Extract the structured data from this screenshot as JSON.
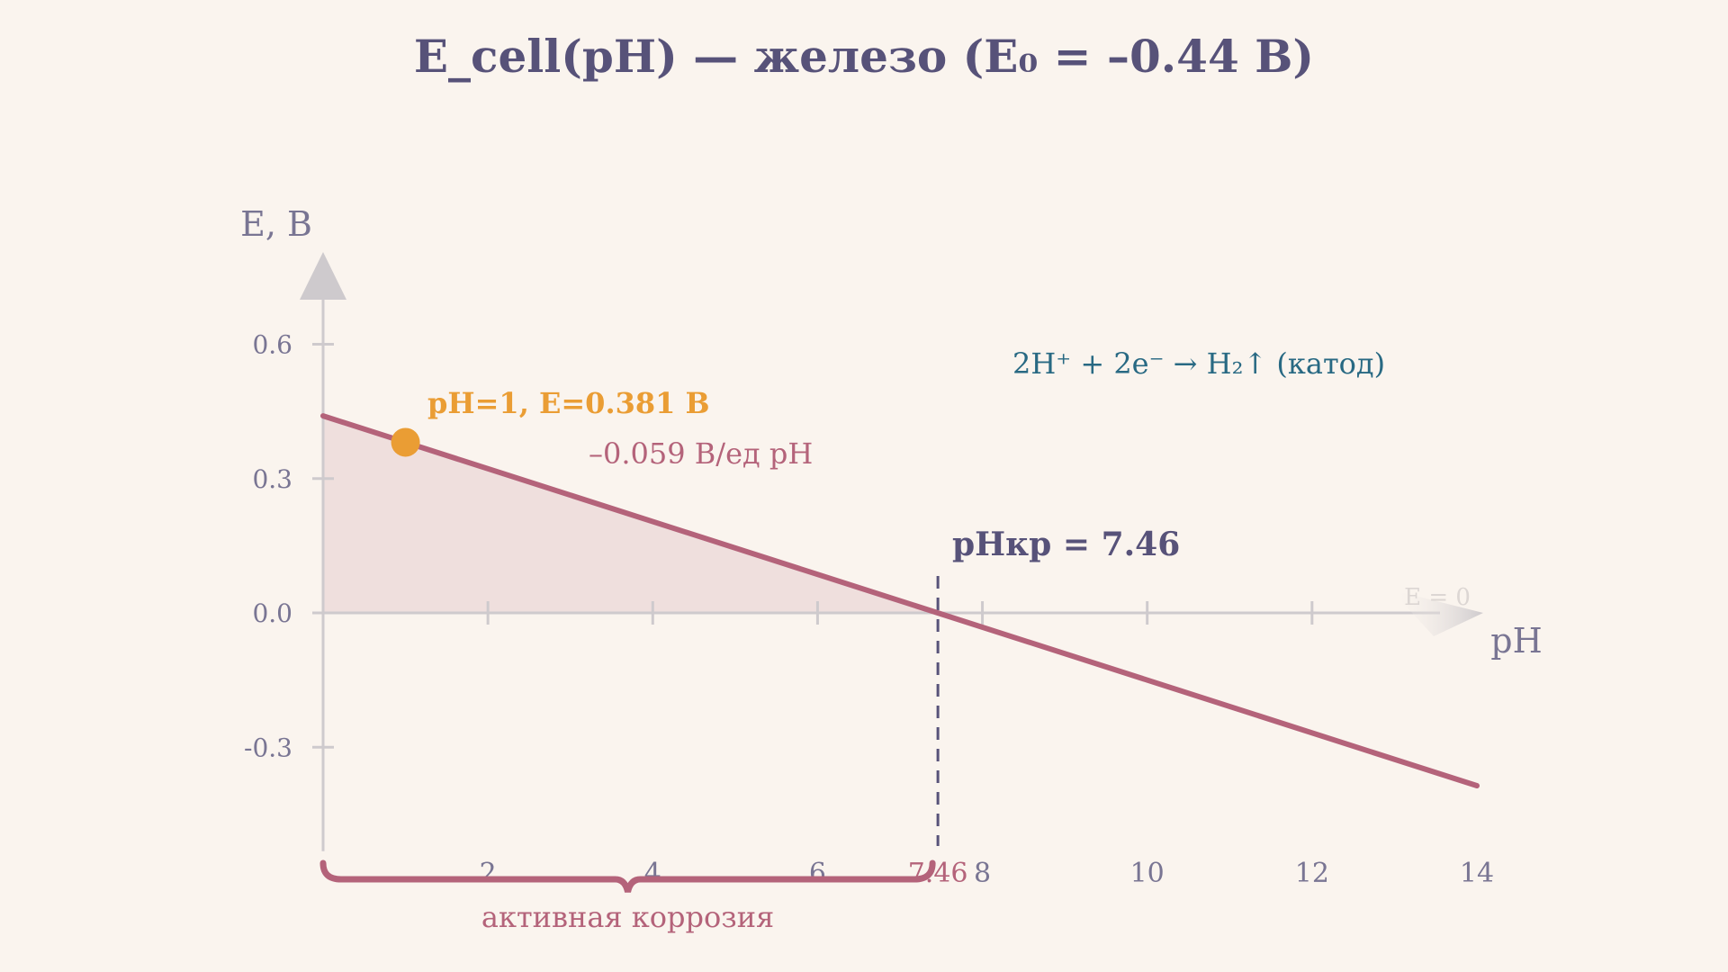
{
  "chart_data": {
    "type": "line",
    "title": "E_cell(pH) — железо (E₀ = –0.44 В)",
    "xlabel": "pH",
    "ylabel": "E,  В",
    "xlim": [
      0,
      14
    ],
    "ylim": [
      -0.5,
      0.7
    ],
    "x_ticks": [
      2,
      4,
      6,
      8,
      10,
      12,
      14
    ],
    "x_tick_labels": [
      "2",
      "4",
      "6",
      "8",
      "10",
      "12",
      "14"
    ],
    "y_ticks": [
      0.6,
      0.3,
      0.0,
      -0.3
    ],
    "y_tick_labels": [
      "0.6",
      "0.3",
      "0.0",
      "-0.3"
    ],
    "series": [
      {
        "x": [
          0,
          14
        ],
        "y": [
          0.44,
          -0.386
        ],
        "color": "#b4637a"
      }
    ],
    "highlight_point": {
      "x": 1,
      "y": 0.381,
      "label": "pH=1, E=0.381 В",
      "color": "#ea9d34"
    },
    "critical_ph": {
      "x": 7.46,
      "label": "pHкр = 7.46",
      "tick_label": "7.46"
    },
    "slope_label": "–0.059 В/ед pH",
    "reaction_label": "2H⁺ + 2e⁻ → H₂↑ (катод)",
    "zero_line_label": "E = 0",
    "region": {
      "from": 0,
      "to": 7.46,
      "label": "активная коррозия",
      "color": "#b4637a"
    },
    "grid": false,
    "legend": "none"
  }
}
